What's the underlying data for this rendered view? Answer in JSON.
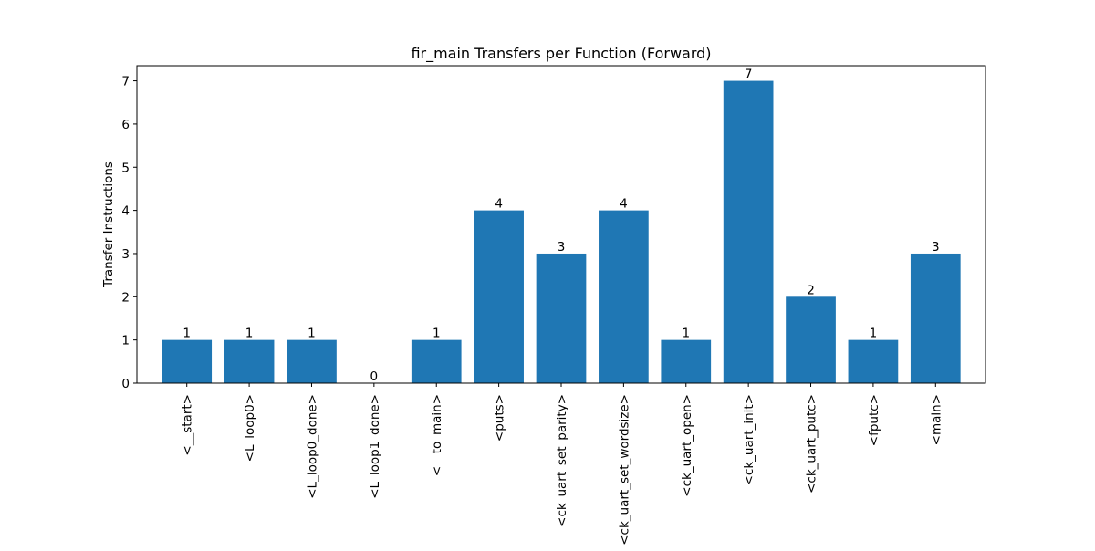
{
  "chart_data": {
    "type": "bar",
    "title": "fir_main Transfers per Function (Forward)",
    "xlabel": "",
    "ylabel": "Transfer Instructions",
    "categories": [
      "<__start>",
      "<L_loop0>",
      "<L_loop0_done>",
      "<L_loop1_done>",
      "<__to_main>",
      "<puts>",
      "<ck_uart_set_parity>",
      "<ck_uart_set_wordsize>",
      "<ck_uart_open>",
      "<ck_uart_init>",
      "<ck_uart_putc>",
      "<fputc>",
      "<main>"
    ],
    "values": [
      1,
      1,
      1,
      0,
      1,
      4,
      3,
      4,
      1,
      7,
      2,
      1,
      3
    ],
    "ylim": [
      0,
      7.35
    ],
    "yticks": [
      0,
      1,
      2,
      3,
      4,
      5,
      6,
      7
    ],
    "bar_color": "#1f77b4",
    "grid": false,
    "legend": "none",
    "data_labels": true
  }
}
